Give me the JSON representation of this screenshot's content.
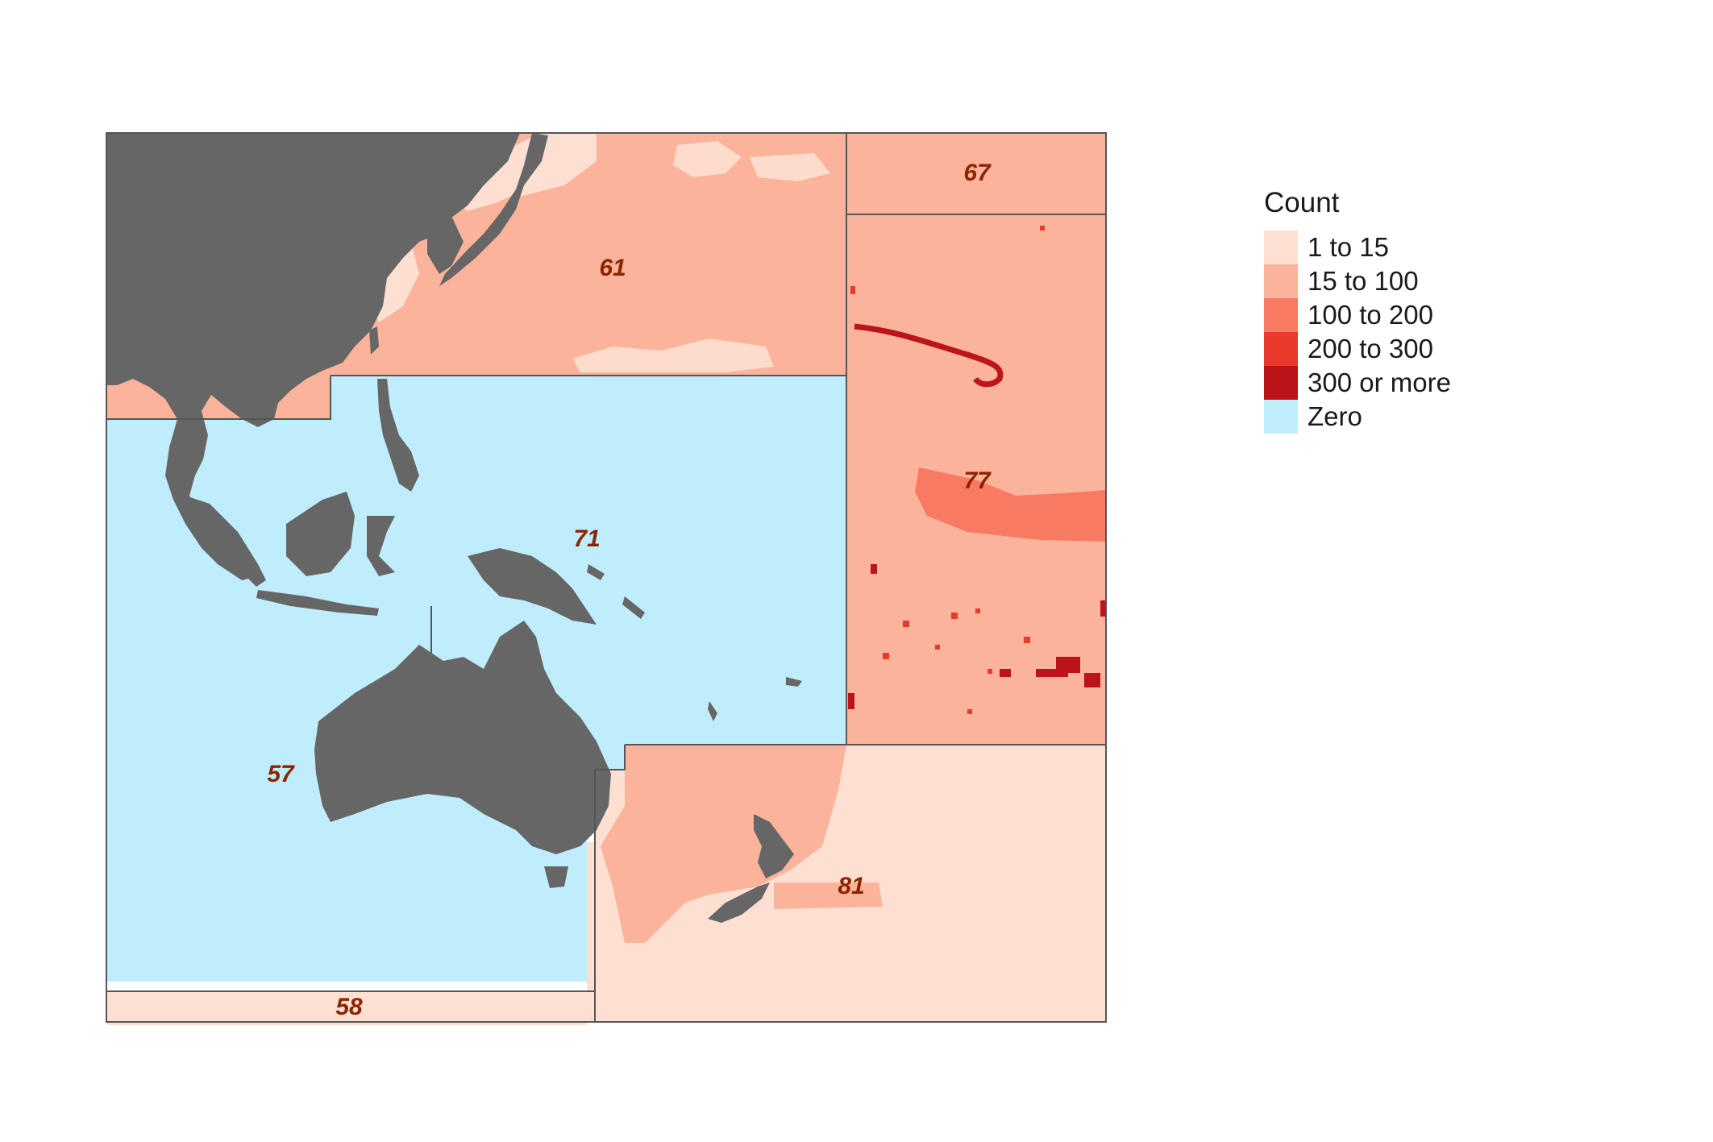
{
  "colors": {
    "cat_1_15": "#fee0d2",
    "cat_15_100": "#fbb39b",
    "cat_100_200": "#f97a62",
    "cat_200_300": "#ea3a2b",
    "cat_300_more": "#bb1519",
    "zero": "#c0edfc",
    "land": "#666666",
    "border": "#555555",
    "label": "#8b2500"
  },
  "legend": {
    "title": "Count",
    "items": [
      {
        "label": "1 to 15",
        "color": "#fee0d2"
      },
      {
        "label": "15 to 100",
        "color": "#fbb39b"
      },
      {
        "label": "100 to 200",
        "color": "#f97a62"
      },
      {
        "label": "200 to 300",
        "color": "#ea3a2b"
      },
      {
        "label": "300 or more",
        "color": "#bb1519"
      },
      {
        "label": "Zero",
        "color": "#c0edfc"
      }
    ]
  },
  "areas": {
    "a61": {
      "label": "61",
      "category": "15 to 100"
    },
    "a67": {
      "label": "67",
      "category": "15 to 100"
    },
    "a71": {
      "label": "71",
      "category": "Zero"
    },
    "a77": {
      "label": "77",
      "category": "15 to 100"
    },
    "a57": {
      "label": "57",
      "category": "Zero"
    },
    "a58": {
      "label": "58",
      "category": "1 to 15"
    },
    "a81": {
      "label": "81",
      "category": "1 to 15"
    }
  }
}
